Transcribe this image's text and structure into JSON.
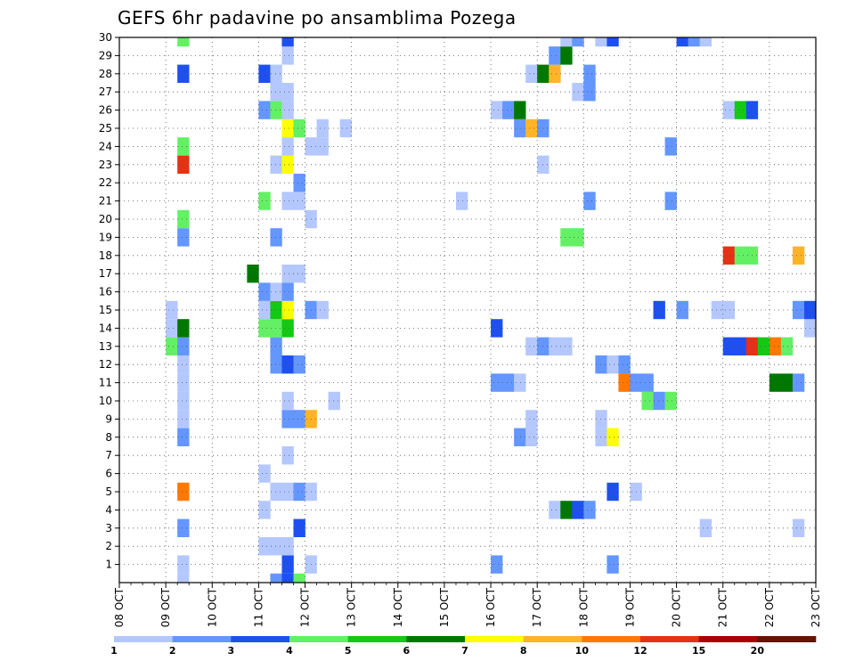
{
  "chart_data": {
    "type": "heatmap",
    "title": "GEFS 6hr padavine po ansamblima Pozega",
    "xlabel": "",
    "ylabel": "",
    "x_ticks": [
      "08 OCT",
      "09 OCT",
      "10 OCT",
      "11 OCT",
      "12 OCT",
      "13 OCT",
      "14 OCT",
      "15 OCT",
      "16 OCT",
      "17 OCT",
      "18 OCT",
      "19 OCT",
      "20 OCT",
      "21 OCT",
      "22 OCT",
      "23 OCT"
    ],
    "y_ticks": [
      1,
      2,
      3,
      4,
      5,
      6,
      7,
      8,
      9,
      10,
      11,
      12,
      13,
      14,
      15,
      16,
      17,
      18,
      19,
      20,
      21,
      22,
      23,
      24,
      25,
      26,
      27,
      28,
      29,
      30
    ],
    "x_range": [
      "08 OCT 00",
      "23 OCT 00"
    ],
    "y_range": [
      0,
      30
    ],
    "time_step_hours": 6,
    "grid": "dotted",
    "colorbar": {
      "labels": [
        "1",
        "2",
        "3",
        "4",
        "5",
        "6",
        "7",
        "8",
        "10",
        "12",
        "15",
        "20"
      ],
      "colors": [
        "#b4c8ff",
        "#6496ff",
        "#1e50f0",
        "#64f064",
        "#14c814",
        "#007800",
        "#ffff00",
        "#ffb428",
        "#ff7800",
        "#e63214",
        "#aa0000",
        "#641400"
      ]
    },
    "units": "precipitation classes (1,2,3,4,5,6,7,8,10,12,15,20)",
    "cells_note": "value = colour class index (0 = 1-2, 1 = 2-3, 2 = 3-4, 3 = 4-5, 4 = 5-6, 5 = 6-7, 6 = 7-8, 7 = 8-10, 8 = 10-12, 9 = 12-15)",
    "cells": [
      {
        "m": 1,
        "t": "09 OCT 06",
        "c": 0
      },
      {
        "m": 1,
        "t": "11 OCT 12",
        "c": 2
      },
      {
        "m": 1,
        "t": "12 OCT 00",
        "c": 0
      },
      {
        "m": 1,
        "t": "16 OCT 00",
        "c": 1
      },
      {
        "m": 1,
        "t": "18 OCT 12",
        "c": 1
      },
      {
        "m": 2,
        "t": "11 OCT 00",
        "c": 0
      },
      {
        "m": 2,
        "t": "11 OCT 06",
        "c": 0
      },
      {
        "m": 2,
        "t": "11 OCT 12",
        "c": 0
      },
      {
        "m": 3,
        "t": "09 OCT 06",
        "c": 1
      },
      {
        "m": 3,
        "t": "11 OCT 18",
        "c": 2
      },
      {
        "m": 3,
        "t": "20 OCT 12",
        "c": 0
      },
      {
        "m": 3,
        "t": "22 OCT 12",
        "c": 0
      },
      {
        "m": 4,
        "t": "11 OCT 00",
        "c": 0
      },
      {
        "m": 4,
        "t": "17 OCT 06",
        "c": 0
      },
      {
        "m": 4,
        "t": "17 OCT 12",
        "c": 5
      },
      {
        "m": 4,
        "t": "17 OCT 18",
        "c": 2
      },
      {
        "m": 4,
        "t": "18 OCT 00",
        "c": 1
      },
      {
        "m": 5,
        "t": "09 OCT 06",
        "c": 8
      },
      {
        "m": 5,
        "t": "11 OCT 06",
        "c": 0
      },
      {
        "m": 5,
        "t": "11 OCT 12",
        "c": 0
      },
      {
        "m": 5,
        "t": "11 OCT 18",
        "c": 1
      },
      {
        "m": 5,
        "t": "12 OCT 00",
        "c": 0
      },
      {
        "m": 5,
        "t": "18 OCT 12",
        "c": 2
      },
      {
        "m": 5,
        "t": "19 OCT 00",
        "c": 0
      },
      {
        "m": 6,
        "t": "11 OCT 00",
        "c": 0
      },
      {
        "m": 7,
        "t": "11 OCT 12",
        "c": 0
      },
      {
        "m": 8,
        "t": "09 OCT 06",
        "c": 1
      },
      {
        "m": 8,
        "t": "16 OCT 12",
        "c": 1
      },
      {
        "m": 8,
        "t": "16 OCT 18",
        "c": 0
      },
      {
        "m": 8,
        "t": "18 OCT 06",
        "c": 0
      },
      {
        "m": 8,
        "t": "18 OCT 12",
        "c": 6
      },
      {
        "m": 9,
        "t": "09 OCT 06",
        "c": 0
      },
      {
        "m": 9,
        "t": "11 OCT 12",
        "c": 1
      },
      {
        "m": 9,
        "t": "11 OCT 18",
        "c": 1
      },
      {
        "m": 9,
        "t": "12 OCT 00",
        "c": 7
      },
      {
        "m": 9,
        "t": "16 OCT 18",
        "c": 0
      },
      {
        "m": 9,
        "t": "18 OCT 06",
        "c": 0
      },
      {
        "m": 10,
        "t": "09 OCT 06",
        "c": 0
      },
      {
        "m": 10,
        "t": "11 OCT 12",
        "c": 0
      },
      {
        "m": 10,
        "t": "12 OCT 12",
        "c": 0
      },
      {
        "m": 10,
        "t": "19 OCT 06",
        "c": 3
      },
      {
        "m": 10,
        "t": "19 OCT 12",
        "c": 1
      },
      {
        "m": 10,
        "t": "19 OCT 18",
        "c": 3
      },
      {
        "m": 11,
        "t": "09 OCT 06",
        "c": 0
      },
      {
        "m": 11,
        "t": "16 OCT 00",
        "c": 1
      },
      {
        "m": 11,
        "t": "16 OCT 06",
        "c": 1
      },
      {
        "m": 11,
        "t": "16 OCT 12",
        "c": 0
      },
      {
        "m": 11,
        "t": "18 OCT 18",
        "c": 8
      },
      {
        "m": 11,
        "t": "19 OCT 00",
        "c": 1
      },
      {
        "m": 11,
        "t": "19 OCT 06",
        "c": 1
      },
      {
        "m": 11,
        "t": "22 OCT 00",
        "c": 5
      },
      {
        "m": 11,
        "t": "22 OCT 06",
        "c": 5
      },
      {
        "m": 11,
        "t": "22 OCT 12",
        "c": 1
      },
      {
        "m": 12,
        "t": "09 OCT 06",
        "c": 0
      },
      {
        "m": 12,
        "t": "11 OCT 06",
        "c": 1
      },
      {
        "m": 12,
        "t": "11 OCT 12",
        "c": 2
      },
      {
        "m": 12,
        "t": "11 OCT 18",
        "c": 1
      },
      {
        "m": 12,
        "t": "18 OCT 06",
        "c": 1
      },
      {
        "m": 12,
        "t": "18 OCT 12",
        "c": 0
      },
      {
        "m": 12,
        "t": "18 OCT 18",
        "c": 1
      },
      {
        "m": 13,
        "t": "09 OCT 00",
        "c": 3
      },
      {
        "m": 13,
        "t": "09 OCT 06",
        "c": 1
      },
      {
        "m": 13,
        "t": "11 OCT 06",
        "c": 1
      },
      {
        "m": 13,
        "t": "16 OCT 18",
        "c": 0
      },
      {
        "m": 13,
        "t": "17 OCT 00",
        "c": 1
      },
      {
        "m": 13,
        "t": "17 OCT 06",
        "c": 0
      },
      {
        "m": 13,
        "t": "17 OCT 12",
        "c": 0
      },
      {
        "m": 13,
        "t": "21 OCT 00",
        "c": 2
      },
      {
        "m": 13,
        "t": "21 OCT 06",
        "c": 2
      },
      {
        "m": 13,
        "t": "21 OCT 12",
        "c": 9
      },
      {
        "m": 13,
        "t": "21 OCT 18",
        "c": 4
      },
      {
        "m": 13,
        "t": "22 OCT 00",
        "c": 8
      },
      {
        "m": 13,
        "t": "22 OCT 06",
        "c": 3
      },
      {
        "m": 14,
        "t": "09 OCT 00",
        "c": 0
      },
      {
        "m": 14,
        "t": "09 OCT 06",
        "c": 5
      },
      {
        "m": 14,
        "t": "11 OCT 00",
        "c": 3
      },
      {
        "m": 14,
        "t": "11 OCT 06",
        "c": 3
      },
      {
        "m": 14,
        "t": "11 OCT 12",
        "c": 4
      },
      {
        "m": 14,
        "t": "16 OCT 00",
        "c": 2
      },
      {
        "m": 14,
        "t": "22 OCT 18",
        "c": 0
      },
      {
        "m": 15,
        "t": "09 OCT 00",
        "c": 0
      },
      {
        "m": 15,
        "t": "11 OCT 00",
        "c": 0
      },
      {
        "m": 15,
        "t": "11 OCT 06",
        "c": 4
      },
      {
        "m": 15,
        "t": "11 OCT 12",
        "c": 6
      },
      {
        "m": 15,
        "t": "12 OCT 00",
        "c": 1
      },
      {
        "m": 15,
        "t": "12 OCT 06",
        "c": 0
      },
      {
        "m": 15,
        "t": "19 OCT 12",
        "c": 2
      },
      {
        "m": 15,
        "t": "20 OCT 00",
        "c": 1
      },
      {
        "m": 15,
        "t": "20 OCT 18",
        "c": 0
      },
      {
        "m": 15,
        "t": "21 OCT 00",
        "c": 0
      },
      {
        "m": 15,
        "t": "22 OCT 12",
        "c": 1
      },
      {
        "m": 15,
        "t": "22 OCT 18",
        "c": 2
      },
      {
        "m": 16,
        "t": "11 OCT 00",
        "c": 1
      },
      {
        "m": 16,
        "t": "11 OCT 06",
        "c": 0
      },
      {
        "m": 16,
        "t": "11 OCT 12",
        "c": 1
      },
      {
        "m": 17,
        "t": "10 OCT 18",
        "c": 5
      },
      {
        "m": 17,
        "t": "11 OCT 12",
        "c": 0
      },
      {
        "m": 17,
        "t": "11 OCT 18",
        "c": 0
      },
      {
        "m": 18,
        "t": "21 OCT 00",
        "c": 9
      },
      {
        "m": 18,
        "t": "21 OCT 06",
        "c": 3
      },
      {
        "m": 18,
        "t": "21 OCT 12",
        "c": 3
      },
      {
        "m": 18,
        "t": "22 OCT 12",
        "c": 7
      },
      {
        "m": 19,
        "t": "09 OCT 06",
        "c": 1
      },
      {
        "m": 19,
        "t": "11 OCT 06",
        "c": 1
      },
      {
        "m": 19,
        "t": "17 OCT 12",
        "c": 3
      },
      {
        "m": 19,
        "t": "17 OCT 18",
        "c": 3
      },
      {
        "m": 20,
        "t": "09 OCT 06",
        "c": 3
      },
      {
        "m": 20,
        "t": "12 OCT 00",
        "c": 0
      },
      {
        "m": 21,
        "t": "11 OCT 00",
        "c": 3
      },
      {
        "m": 21,
        "t": "11 OCT 12",
        "c": 0
      },
      {
        "m": 21,
        "t": "11 OCT 18",
        "c": 0
      },
      {
        "m": 21,
        "t": "15 OCT 06",
        "c": 0
      },
      {
        "m": 21,
        "t": "18 OCT 00",
        "c": 1
      },
      {
        "m": 21,
        "t": "19 OCT 18",
        "c": 1
      },
      {
        "m": 22,
        "t": "11 OCT 18",
        "c": 1
      },
      {
        "m": 23,
        "t": "09 OCT 06",
        "c": 9
      },
      {
        "m": 23,
        "t": "11 OCT 06",
        "c": 0
      },
      {
        "m": 23,
        "t": "11 OCT 12",
        "c": 6
      },
      {
        "m": 23,
        "t": "17 OCT 00",
        "c": 0
      },
      {
        "m": 24,
        "t": "09 OCT 06",
        "c": 3
      },
      {
        "m": 24,
        "t": "11 OCT 12",
        "c": 0
      },
      {
        "m": 24,
        "t": "12 OCT 00",
        "c": 0
      },
      {
        "m": 24,
        "t": "12 OCT 06",
        "c": 0
      },
      {
        "m": 24,
        "t": "19 OCT 18",
        "c": 1
      },
      {
        "m": 25,
        "t": "11 OCT 12",
        "c": 6
      },
      {
        "m": 25,
        "t": "11 OCT 18",
        "c": 3
      },
      {
        "m": 25,
        "t": "12 OCT 06",
        "c": 0
      },
      {
        "m": 25,
        "t": "12 OCT 18",
        "c": 0
      },
      {
        "m": 25,
        "t": "16 OCT 12",
        "c": 1
      },
      {
        "m": 25,
        "t": "16 OCT 18",
        "c": 7
      },
      {
        "m": 25,
        "t": "17 OCT 00",
        "c": 1
      },
      {
        "m": 26,
        "t": "11 OCT 00",
        "c": 1
      },
      {
        "m": 26,
        "t": "11 OCT 06",
        "c": 3
      },
      {
        "m": 26,
        "t": "11 OCT 12",
        "c": 0
      },
      {
        "m": 26,
        "t": "16 OCT 00",
        "c": 0
      },
      {
        "m": 26,
        "t": "16 OCT 06",
        "c": 1
      },
      {
        "m": 26,
        "t": "16 OCT 12",
        "c": 5
      },
      {
        "m": 26,
        "t": "21 OCT 00",
        "c": 0
      },
      {
        "m": 26,
        "t": "21 OCT 06",
        "c": 4
      },
      {
        "m": 26,
        "t": "21 OCT 12",
        "c": 2
      },
      {
        "m": 27,
        "t": "11 OCT 06",
        "c": 0
      },
      {
        "m": 27,
        "t": "11 OCT 12",
        "c": 0
      },
      {
        "m": 27,
        "t": "17 OCT 18",
        "c": 0
      },
      {
        "m": 27,
        "t": "18 OCT 00",
        "c": 1
      },
      {
        "m": 28,
        "t": "09 OCT 06",
        "c": 2
      },
      {
        "m": 28,
        "t": "11 OCT 00",
        "c": 2
      },
      {
        "m": 28,
        "t": "11 OCT 06",
        "c": 0
      },
      {
        "m": 28,
        "t": "16 OCT 18",
        "c": 0
      },
      {
        "m": 28,
        "t": "17 OCT 00",
        "c": 5
      },
      {
        "m": 28,
        "t": "17 OCT 06",
        "c": 7
      },
      {
        "m": 28,
        "t": "18 OCT 00",
        "c": 1
      },
      {
        "m": 29,
        "t": "11 OCT 12",
        "c": 0
      },
      {
        "m": 29,
        "t": "17 OCT 06",
        "c": 1
      },
      {
        "m": 29,
        "t": "17 OCT 12",
        "c": 5
      },
      {
        "m": 30,
        "t": "09 OCT 06",
        "c": 3
      },
      {
        "m": 30,
        "t": "11 OCT 12",
        "c": 2
      },
      {
        "m": 30,
        "t": "17 OCT 12",
        "c": 0
      },
      {
        "m": 30,
        "t": "17 OCT 18",
        "c": 1
      },
      {
        "m": 30,
        "t": "18 OCT 06",
        "c": 0
      },
      {
        "m": 30,
        "t": "18 OCT 12",
        "c": 2
      },
      {
        "m": 30,
        "t": "20 OCT 00",
        "c": 2
      },
      {
        "m": 30,
        "t": "20 OCT 06",
        "c": 1
      },
      {
        "m": 30,
        "t": "20 OCT 12",
        "c": 0
      },
      {
        "m": 0,
        "t": "09 OCT 06",
        "c": 0
      },
      {
        "m": 0,
        "t": "11 OCT 06",
        "c": 1
      },
      {
        "m": 0,
        "t": "11 OCT 12",
        "c": 2
      },
      {
        "m": 0,
        "t": "11 OCT 18",
        "c": 3
      }
    ]
  }
}
